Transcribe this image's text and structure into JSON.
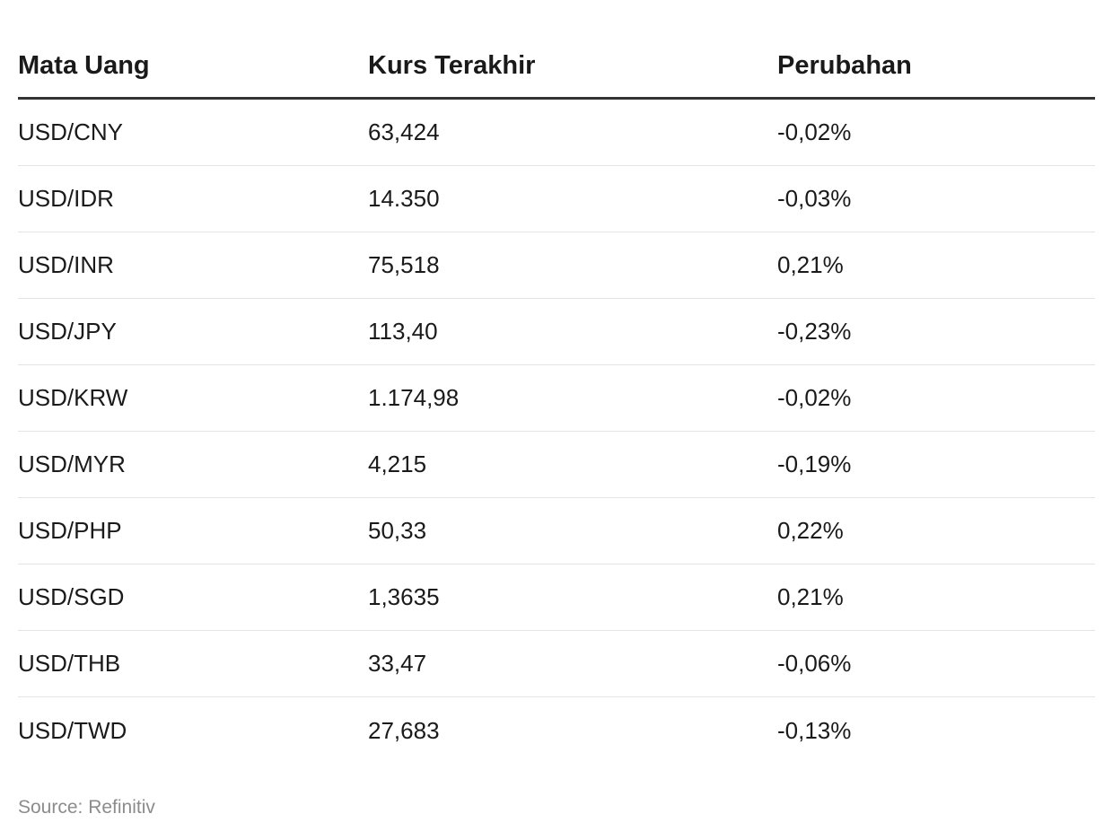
{
  "chart_data": {
    "type": "table",
    "columns": [
      "Mata Uang",
      "Kurs Terakhir",
      "Perubahan"
    ],
    "rows": [
      [
        "USD/CNY",
        "63,424",
        "-0,02%"
      ],
      [
        "USD/IDR",
        "14.350",
        "-0,03%"
      ],
      [
        "USD/INR",
        "75,518",
        "0,21%"
      ],
      [
        "USD/JPY",
        "113,40",
        "-0,23%"
      ],
      [
        "USD/KRW",
        "1.174,98",
        "-0,02%"
      ],
      [
        "USD/MYR",
        "4,215",
        "-0,19%"
      ],
      [
        "USD/PHP",
        "50,33",
        "0,22%"
      ],
      [
        "USD/SGD",
        "1,3635",
        "0,21%"
      ],
      [
        "USD/THB",
        "33,47",
        "-0,06%"
      ],
      [
        "USD/TWD",
        "27,683",
        "-0,13%"
      ]
    ],
    "source": "Source: Refinitiv"
  },
  "colors": {
    "text": "#1a1a1a",
    "header_rule": "#333333",
    "row_rule": "#e4e4e4",
    "source_text": "#8c8c8c"
  }
}
